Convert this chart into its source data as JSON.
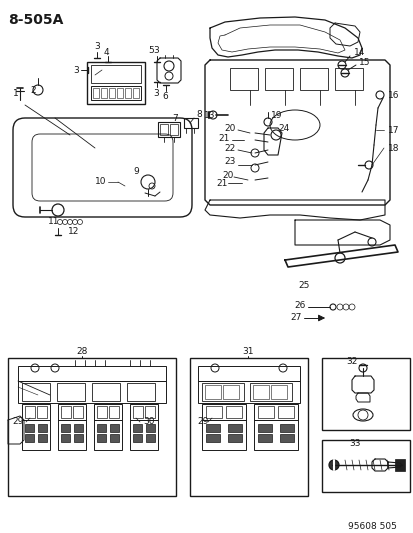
{
  "title": "8-505A",
  "footer": "95608 505",
  "bg_color": "#ffffff",
  "line_color": "#1a1a1a",
  "title_fontsize": 10,
  "footer_fontsize": 6.5,
  "label_fontsize": 6.5,
  "fig_width": 4.14,
  "fig_height": 5.33,
  "dpi": 100
}
